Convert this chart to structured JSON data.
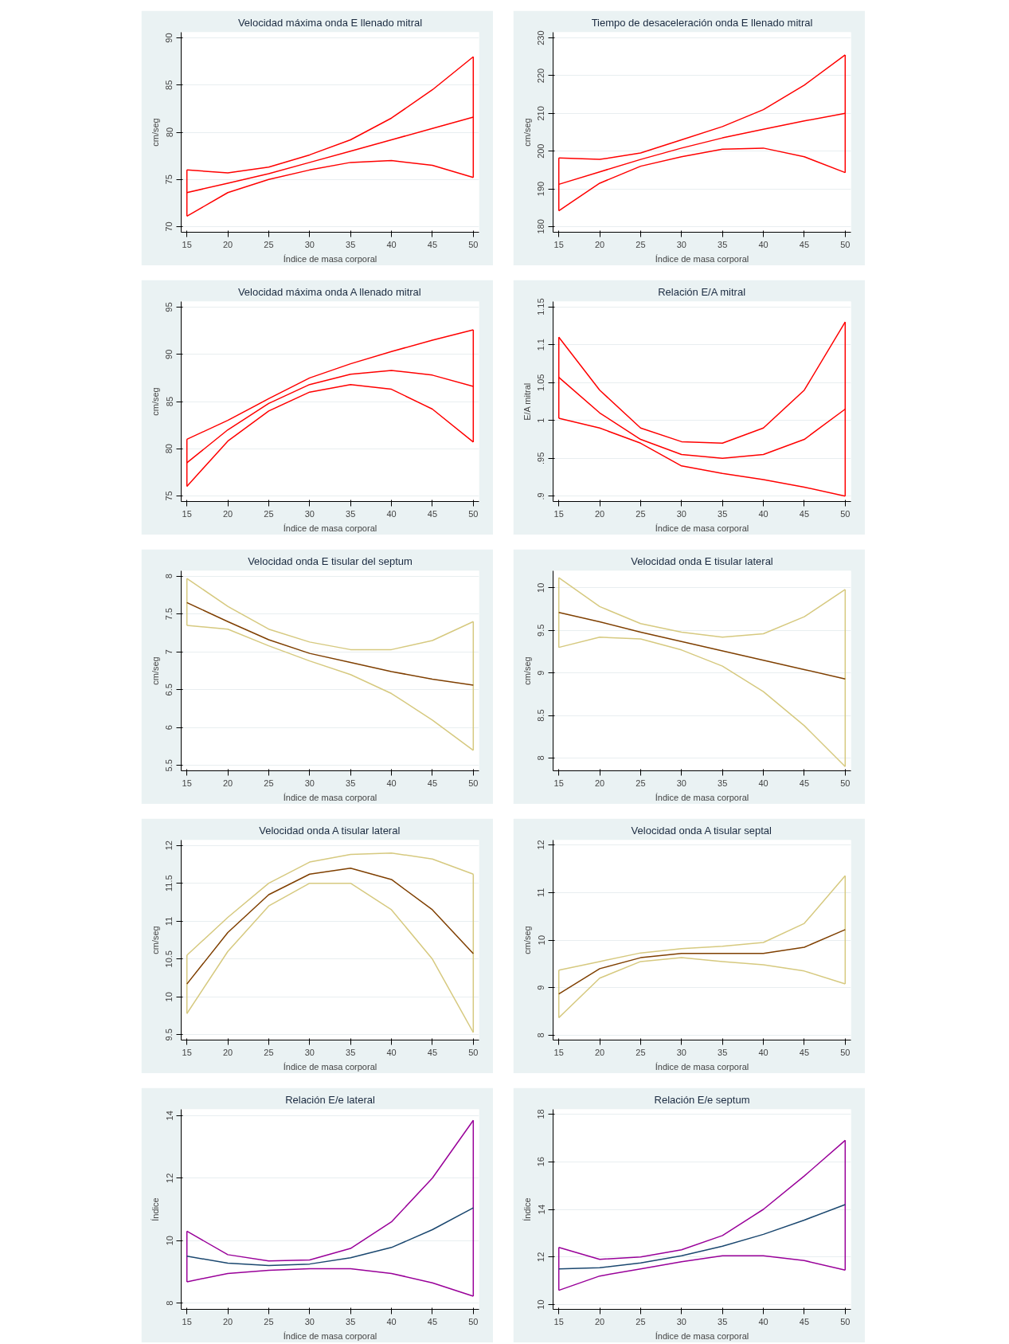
{
  "chart_data": [
    {
      "type": "line",
      "title": "Velocidad máxima onda E llenado mitral",
      "xlabel": "Índice de masa corporal",
      "ylabel": "cm/seg",
      "xlim": [
        14.3,
        50.7
      ],
      "ylim": [
        69.4,
        90.6
      ],
      "xticks": [
        15,
        20,
        25,
        30,
        35,
        40,
        45,
        50
      ],
      "yticks": [
        70,
        75,
        80,
        85,
        90
      ],
      "grid": "y",
      "x": [
        15,
        20,
        25,
        30,
        35,
        40,
        45,
        50
      ],
      "series": [
        {
          "color": "#ff0000",
          "values": [
            76.0,
            75.7,
            76.3,
            77.6,
            79.2,
            81.5,
            84.5,
            88.0
          ]
        },
        {
          "color": "#ff0000",
          "values": [
            73.6,
            74.6,
            75.6,
            76.8,
            78.0,
            79.2,
            80.4,
            81.6
          ],
          "errors": [
            [
              71.1,
              76.0
            ],
            null,
            null,
            null,
            null,
            null,
            null,
            [
              75.2,
              88.0
            ]
          ]
        },
        {
          "color": "#ff0000",
          "values": [
            71.1,
            73.6,
            75.0,
            76.0,
            76.8,
            77.0,
            76.5,
            75.2
          ]
        }
      ]
    },
    {
      "type": "line",
      "title": "Tiempo de desaceleración onda E llenado mitral",
      "xlabel": "Índice de masa corporal",
      "ylabel": "cm/seg",
      "xlim": [
        14.3,
        50.7
      ],
      "ylim": [
        178.5,
        231.5
      ],
      "xticks": [
        15,
        20,
        25,
        30,
        35,
        40,
        45,
        50
      ],
      "yticks": [
        180,
        190,
        200,
        210,
        220,
        230
      ],
      "grid": "y",
      "x": [
        15,
        20,
        25,
        30,
        35,
        40,
        45,
        50
      ],
      "series": [
        {
          "color": "#ff0000",
          "values": [
            198.2,
            197.8,
            199.5,
            203,
            206.5,
            211,
            217.5,
            225.5
          ]
        },
        {
          "color": "#ff0000",
          "values": [
            191.2,
            194.5,
            197.8,
            200.8,
            203.5,
            205.8,
            208,
            210
          ],
          "errors": [
            [
              184.2,
              198.2
            ],
            null,
            null,
            null,
            null,
            null,
            null,
            [
              194.3,
              225.5
            ]
          ]
        },
        {
          "color": "#ff0000",
          "values": [
            184.2,
            191.5,
            196,
            198.5,
            200.5,
            200.8,
            198.5,
            194.3
          ]
        }
      ]
    },
    {
      "type": "line",
      "title": "Velocidad máxima onda A llenado mitral",
      "xlabel": "Índice de masa corporal",
      "ylabel": "cm/seg",
      "xlim": [
        14.3,
        50.7
      ],
      "ylim": [
        74.4,
        95.6
      ],
      "xticks": [
        15,
        20,
        25,
        30,
        35,
        40,
        45,
        50
      ],
      "yticks": [
        75,
        80,
        85,
        90,
        95
      ],
      "grid": "y",
      "x": [
        15,
        20,
        25,
        30,
        35,
        40,
        45,
        50
      ],
      "series": [
        {
          "color": "#ff0000",
          "values": [
            81.0,
            83.0,
            85.3,
            87.5,
            89.0,
            90.3,
            91.5,
            92.6
          ]
        },
        {
          "color": "#ff0000",
          "values": [
            78.5,
            82.0,
            84.8,
            86.8,
            87.9,
            88.3,
            87.8,
            86.6
          ],
          "errors": [
            [
              76.0,
              81.0
            ],
            null,
            null,
            null,
            null,
            null,
            null,
            [
              80.7,
              92.6
            ]
          ]
        },
        {
          "color": "#ff0000",
          "values": [
            76.0,
            80.8,
            84.0,
            86.0,
            86.8,
            86.3,
            84.2,
            80.7
          ]
        }
      ]
    },
    {
      "type": "line",
      "title": "Relación E/A mitral",
      "xlabel": "Índice de masa corporal",
      "ylabel": "E/A mitral",
      "xlim": [
        14.3,
        50.7
      ],
      "ylim": [
        0.893,
        1.157
      ],
      "xticks": [
        15,
        20,
        25,
        30,
        35,
        40,
        45,
        50
      ],
      "yticks": [
        {
          "value": 0.9,
          "label": ".9"
        },
        {
          "value": 0.95,
          "label": ".95"
        },
        1,
        1.05,
        1.1,
        1.15
      ],
      "grid": "y",
      "x": [
        15,
        20,
        25,
        30,
        35,
        40,
        45,
        50
      ],
      "series": [
        {
          "color": "#ff0000",
          "values": [
            1.11,
            1.04,
            0.99,
            0.972,
            0.97,
            0.99,
            1.04,
            1.13
          ]
        },
        {
          "color": "#ff0000",
          "values": [
            1.057,
            1.01,
            0.975,
            0.955,
            0.95,
            0.955,
            0.975,
            1.015
          ],
          "errors": [
            [
              1.003,
              1.11
            ],
            null,
            null,
            null,
            null,
            null,
            null,
            [
              0.9,
              1.13
            ]
          ]
        },
        {
          "color": "#ff0000",
          "values": [
            1.003,
            0.99,
            0.97,
            0.94,
            0.93,
            0.922,
            0.912,
            0.9
          ]
        }
      ]
    },
    {
      "type": "line",
      "title": "Velocidad onda E tisular del septum",
      "xlabel": "Índice de masa corporal",
      "ylabel": "cm/seg",
      "xlim": [
        14.3,
        50.7
      ],
      "ylim": [
        5.43,
        8.07
      ],
      "xticks": [
        15,
        20,
        25,
        30,
        35,
        40,
        45,
        50
      ],
      "yticks": [
        5.5,
        6,
        6.5,
        7,
        7.5,
        8
      ],
      "grid": "y",
      "x": [
        15,
        20,
        25,
        30,
        35,
        40,
        45,
        50
      ],
      "series": [
        {
          "color": "#d6c97f",
          "values": [
            7.97,
            7.6,
            7.3,
            7.13,
            7.03,
            7.03,
            7.15,
            7.4
          ],
          "errors": [
            [
              7.35,
              7.97
            ],
            null,
            null,
            null,
            null,
            null,
            null,
            [
              5.7,
              7.4
            ]
          ]
        },
        {
          "color": "#7f3f00",
          "values": [
            7.65,
            7.4,
            7.16,
            6.98,
            6.86,
            6.74,
            6.64,
            6.56
          ]
        },
        {
          "color": "#d6c97f",
          "values": [
            7.35,
            7.3,
            7.08,
            6.88,
            6.7,
            6.45,
            6.1,
            5.7
          ]
        }
      ]
    },
    {
      "type": "line",
      "title": "Velocidad onda E tisular lateral",
      "xlabel": "Índice de masa corporal",
      "ylabel": "cm/seg",
      "xlim": [
        14.3,
        50.7
      ],
      "ylim": [
        7.85,
        10.2
      ],
      "xticks": [
        15,
        20,
        25,
        30,
        35,
        40,
        45,
        50
      ],
      "yticks": [
        8,
        8.5,
        9,
        9.5,
        10
      ],
      "grid": "y",
      "x": [
        15,
        20,
        25,
        30,
        35,
        40,
        45,
        50
      ],
      "series": [
        {
          "color": "#d6c97f",
          "values": [
            10.12,
            9.78,
            9.58,
            9.48,
            9.42,
            9.46,
            9.66,
            9.98
          ],
          "errors": [
            [
              9.3,
              10.12
            ],
            null,
            null,
            null,
            null,
            null,
            null,
            [
              7.9,
              9.98
            ]
          ]
        },
        {
          "color": "#7f3f00",
          "values": [
            9.71,
            9.6,
            9.48,
            9.37,
            9.26,
            9.15,
            9.04,
            8.93
          ]
        },
        {
          "color": "#d6c97f",
          "values": [
            9.3,
            9.42,
            9.4,
            9.27,
            9.08,
            8.78,
            8.38,
            7.9
          ]
        }
      ]
    },
    {
      "type": "line",
      "title": "Velocidad onda A tisular lateral",
      "xlabel": "Índice de masa corporal",
      "ylabel": "cm/seg",
      "xlim": [
        14.3,
        50.7
      ],
      "ylim": [
        9.43,
        12.07
      ],
      "xticks": [
        15,
        20,
        25,
        30,
        35,
        40,
        45,
        50
      ],
      "yticks": [
        9.5,
        10,
        10.5,
        11,
        11.5,
        12
      ],
      "grid": "y",
      "x": [
        15,
        20,
        25,
        30,
        35,
        40,
        45,
        50
      ],
      "series": [
        {
          "color": "#d6c97f",
          "values": [
            10.55,
            11.05,
            11.5,
            11.78,
            11.88,
            11.9,
            11.82,
            11.62
          ],
          "errors": [
            [
              9.78,
              10.55
            ],
            null,
            null,
            null,
            null,
            null,
            null,
            [
              9.53,
              11.62
            ]
          ]
        },
        {
          "color": "#7f3f00",
          "values": [
            10.17,
            10.85,
            11.35,
            11.62,
            11.7,
            11.55,
            11.15,
            10.57
          ]
        },
        {
          "color": "#d6c97f",
          "values": [
            9.78,
            10.6,
            11.2,
            11.5,
            11.5,
            11.15,
            10.5,
            9.53
          ]
        }
      ]
    },
    {
      "type": "line",
      "title": "Velocidad onda A tisular septal",
      "xlabel": "Índice de masa corporal",
      "ylabel": "cm/seg",
      "xlim": [
        14.3,
        50.7
      ],
      "ylim": [
        7.9,
        12.1
      ],
      "xticks": [
        15,
        20,
        25,
        30,
        35,
        40,
        45,
        50
      ],
      "yticks": [
        8,
        9,
        10,
        11,
        12
      ],
      "grid": "y",
      "x": [
        15,
        20,
        25,
        30,
        35,
        40,
        45,
        50
      ],
      "series": [
        {
          "color": "#d6c97f",
          "values": [
            9.37,
            9.55,
            9.73,
            9.82,
            9.87,
            9.95,
            10.35,
            11.35
          ],
          "errors": [
            [
              8.37,
              9.37
            ],
            null,
            null,
            null,
            null,
            null,
            null,
            [
              9.08,
              11.35
            ]
          ]
        },
        {
          "color": "#7f3f00",
          "values": [
            8.87,
            9.4,
            9.63,
            9.72,
            9.72,
            9.72,
            9.85,
            10.22
          ]
        },
        {
          "color": "#d6c97f",
          "values": [
            8.37,
            9.2,
            9.55,
            9.63,
            9.55,
            9.48,
            9.35,
            9.08
          ]
        }
      ]
    },
    {
      "type": "line",
      "title": "Relación E/e lateral",
      "xlabel": "Índice de masa corporal",
      "ylabel": "Índice",
      "xlim": [
        14.3,
        50.7
      ],
      "ylim": [
        7.8,
        14.2
      ],
      "xticks": [
        15,
        20,
        25,
        30,
        35,
        40,
        45,
        50
      ],
      "yticks": [
        8,
        10,
        12,
        14
      ],
      "grid": "y",
      "x": [
        15,
        20,
        25,
        30,
        35,
        40,
        45,
        50
      ],
      "series": [
        {
          "color": "#990099",
          "values": [
            10.3,
            9.55,
            9.35,
            9.38,
            9.75,
            10.6,
            12.0,
            13.85
          ],
          "errors": [
            [
              8.68,
              10.3
            ],
            null,
            null,
            null,
            null,
            null,
            null,
            [
              8.22,
              13.85
            ]
          ]
        },
        {
          "color": "#1a476f",
          "values": [
            9.5,
            9.28,
            9.2,
            9.25,
            9.45,
            9.78,
            10.35,
            11.05
          ]
        },
        {
          "color": "#990099",
          "values": [
            8.68,
            8.95,
            9.05,
            9.1,
            9.1,
            8.95,
            8.65,
            8.22
          ]
        }
      ]
    },
    {
      "type": "line",
      "title": "Relación E/e septum",
      "xlabel": "Índice de masa corporal",
      "ylabel": "Índice",
      "xlim": [
        14.3,
        50.7
      ],
      "ylim": [
        9.8,
        18.2
      ],
      "xticks": [
        15,
        20,
        25,
        30,
        35,
        40,
        45,
        50
      ],
      "yticks": [
        10,
        12,
        14,
        16,
        18
      ],
      "grid": "y",
      "x": [
        15,
        20,
        25,
        30,
        35,
        40,
        45,
        50
      ],
      "series": [
        {
          "color": "#990099",
          "values": [
            12.4,
            11.9,
            12.0,
            12.3,
            12.9,
            14.0,
            15.4,
            16.9
          ],
          "errors": [
            [
              10.6,
              12.4
            ],
            null,
            null,
            null,
            null,
            null,
            null,
            [
              11.45,
              16.9
            ]
          ]
        },
        {
          "color": "#1a476f",
          "values": [
            11.5,
            11.55,
            11.75,
            12.05,
            12.45,
            12.95,
            13.55,
            14.2
          ]
        },
        {
          "color": "#990099",
          "values": [
            10.6,
            11.2,
            11.5,
            11.8,
            12.05,
            12.05,
            11.85,
            11.45
          ]
        }
      ]
    }
  ]
}
